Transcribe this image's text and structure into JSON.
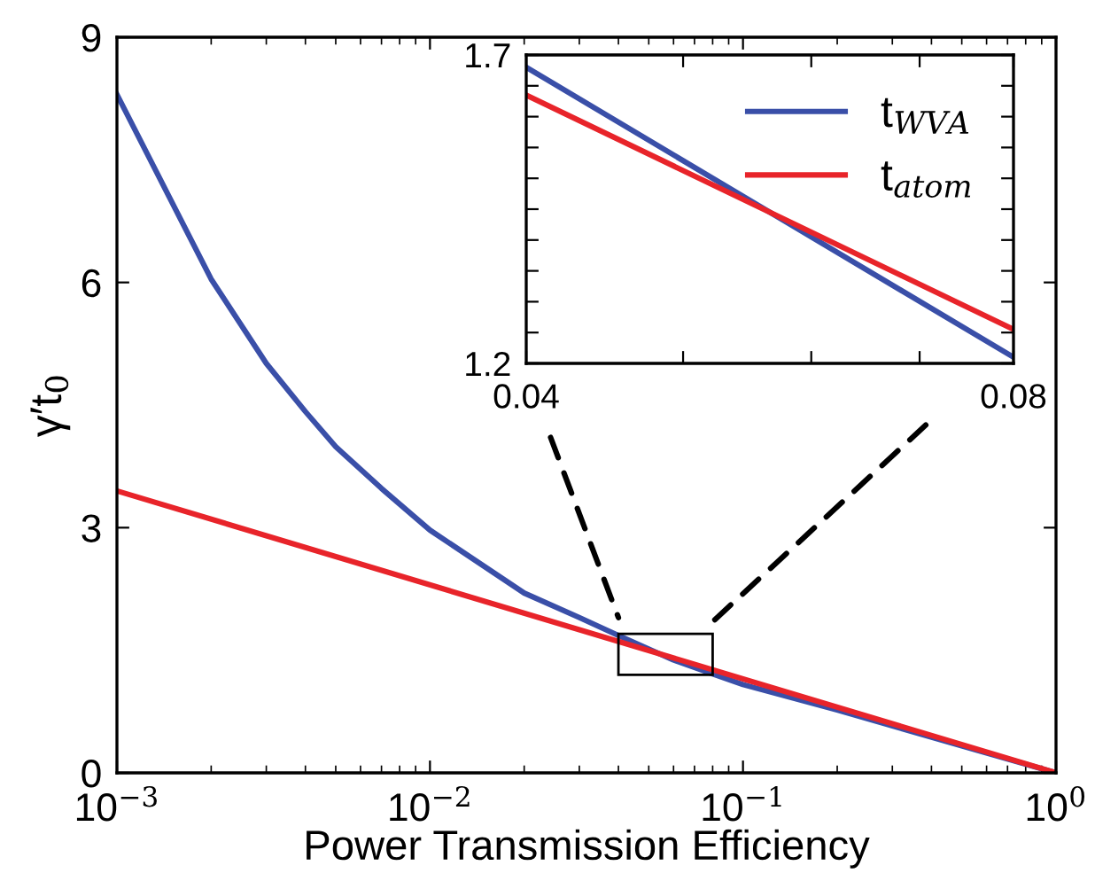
{
  "chart_data": [
    {
      "type": "line",
      "xlabel": "Power Transmission Efficiency",
      "ylabel": "γ′t$_{0}$",
      "log": "x",
      "grid": false,
      "legend": false,
      "xlim": [
        0.001,
        1
      ],
      "xticks": [
        {
          "value": 0.001,
          "label": "10$^{−3}$"
        },
        {
          "value": 0.01,
          "label": "10$^{−2}$"
        },
        {
          "value": 0.1,
          "label": "10$^{−1}$"
        },
        {
          "value": 1,
          "label": "10$^{0}$"
        }
      ],
      "ylim": [
        0,
        9
      ],
      "yticks": [
        0,
        3,
        6,
        9
      ],
      "series": [
        {
          "color": "#3a4fa8",
          "x": [
            0.001,
            0.002,
            0.003,
            0.004,
            0.005,
            0.007,
            0.01,
            0.02,
            0.03,
            0.04,
            0.06,
            0.08,
            0.1,
            0.2,
            0.5,
            1
          ],
          "values": [
            8.3,
            6.04,
            5.01,
            4.42,
            3.99,
            3.48,
            2.97,
            2.2,
            1.9,
            1.68,
            1.38,
            1.21,
            1.08,
            0.77,
            0.33,
            0
          ]
        },
        {
          "color": "#e8242a",
          "x": [
            0.001,
            1
          ],
          "values": [
            3.45,
            0
          ]
        }
      ]
    },
    {
      "type": "line",
      "log": "x",
      "grid": false,
      "legend": "top right",
      "xlim": [
        0.04,
        0.08
      ],
      "xticks": [
        0.04,
        {
          "value": 0.05,
          "label": null
        },
        {
          "value": 0.06,
          "label": null
        },
        {
          "value": 0.07,
          "label": null
        },
        0.08
      ],
      "ylim": [
        1.2,
        1.7
      ],
      "yticks": [
        1.2,
        {
          "value": 1.25,
          "label": null
        },
        {
          "value": 1.3,
          "label": null
        },
        {
          "value": 1.35,
          "label": null
        },
        {
          "value": 1.4,
          "label": null
        },
        {
          "value": 1.45,
          "label": null
        },
        {
          "value": 1.5,
          "label": null
        },
        {
          "value": 1.55,
          "label": null
        },
        {
          "value": 1.6,
          "label": null
        },
        {
          "value": 1.65,
          "label": null
        },
        1.7
      ],
      "series": [
        {
          "name": "t$_{WVA}$",
          "color": "#3a4fa8",
          "x": [
            0.04,
            0.08
          ],
          "values": [
            1.68,
            1.21
          ]
        },
        {
          "name": "t$_{atom}$",
          "color": "#e8242a",
          "x": [
            0.04,
            0.08
          ],
          "values": [
            1.635,
            1.255
          ]
        }
      ]
    }
  ]
}
